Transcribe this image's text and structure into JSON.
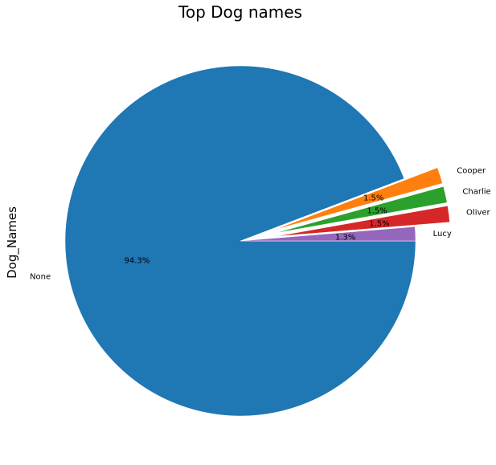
{
  "chart_data": {
    "type": "pie",
    "title": "Top Dog names",
    "ylabel": "Dog_Names",
    "slices": [
      {
        "label": "None",
        "value": 94.3,
        "pct_label": "94.3%",
        "color": "#1f77b4",
        "explode": false
      },
      {
        "label": "Cooper",
        "value": 1.5,
        "pct_label": "1.5%",
        "color": "#ff7f0e",
        "explode": true
      },
      {
        "label": "Charlie",
        "value": 1.5,
        "pct_label": "1.5%",
        "color": "#2ca02c",
        "explode": true
      },
      {
        "label": "Oliver",
        "value": 1.5,
        "pct_label": "1.5%",
        "color": "#d62728",
        "explode": true
      },
      {
        "label": "Lucy",
        "value": 1.3,
        "pct_label": "1.3%",
        "color": "#9467bd",
        "explode": false
      }
    ]
  }
}
